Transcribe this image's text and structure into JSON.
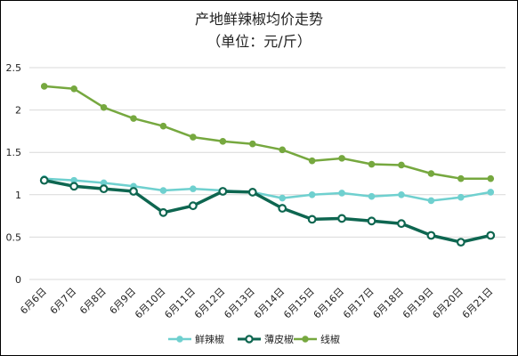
{
  "chart_data": {
    "type": "line",
    "title": "产地鲜辣椒均价走势",
    "subtitle": "（单位：元/斤）",
    "categories": [
      "6月6日",
      "6月7日",
      "6月8日",
      "6月9日",
      "6月10日",
      "6月11日",
      "6月12日",
      "6月13日",
      "6月14日",
      "6月15日",
      "6月16日",
      "6月17日",
      "6月18日",
      "6月19日",
      "6月20日",
      "6月21日"
    ],
    "yticks": [
      "0",
      "0.5",
      "1",
      "1.5",
      "2",
      "2.5"
    ],
    "ylim": [
      0,
      2.5
    ],
    "grid": true,
    "legend_position": "bottom",
    "series": [
      {
        "name": "鲜辣椒",
        "color": "#6fd0cf",
        "width": 2.5,
        "values": [
          1.19,
          1.17,
          1.14,
          1.1,
          1.05,
          1.07,
          1.05,
          1.03,
          0.96,
          1.0,
          1.02,
          0.98,
          1.0,
          0.93,
          0.97,
          1.03
        ]
      },
      {
        "name": "薄皮椒",
        "color": "#0e6650",
        "width": 3.5,
        "values": [
          1.17,
          1.1,
          1.07,
          1.04,
          0.79,
          0.87,
          1.04,
          1.03,
          0.84,
          0.71,
          0.72,
          0.69,
          0.66,
          0.52,
          0.44,
          0.52
        ]
      },
      {
        "name": "线椒",
        "color": "#76a83f",
        "width": 2.5,
        "values": [
          2.28,
          2.25,
          2.03,
          1.9,
          1.81,
          1.68,
          1.63,
          1.6,
          1.53,
          1.4,
          1.43,
          1.36,
          1.35,
          1.25,
          1.19,
          1.19
        ]
      }
    ]
  }
}
